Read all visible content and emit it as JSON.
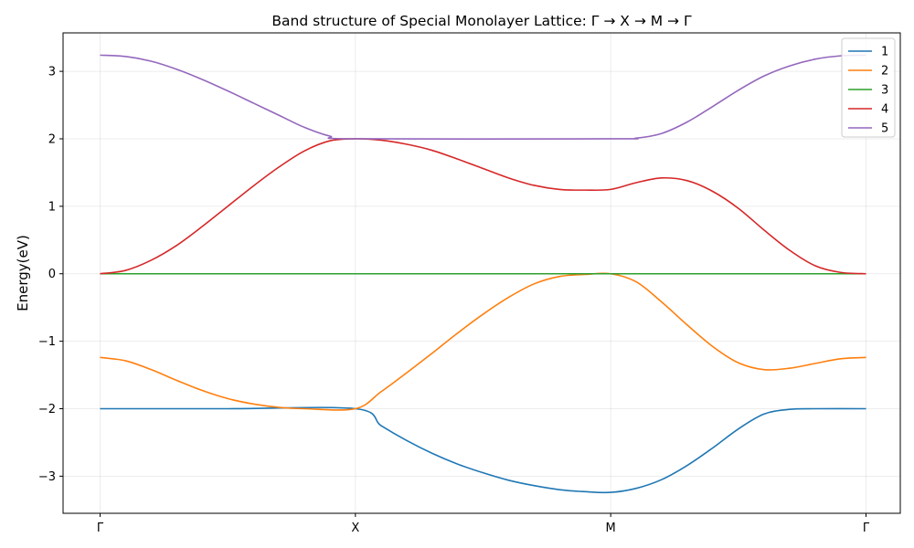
{
  "chart_data": {
    "type": "line",
    "title": "Band structure of Special Monolayer Lattice: Γ → X → M → Γ",
    "xlabel": "",
    "ylabel": "Energy(eV)",
    "x_ticks": [
      "Γ",
      "X",
      "M",
      "Γ"
    ],
    "y_ticks": [
      "−3",
      "−2",
      "−1",
      "0",
      "1",
      "2",
      "3"
    ],
    "xlim": [
      0,
      3
    ],
    "ylim": [
      -3.55,
      3.57
    ],
    "grid": true,
    "legend_position": "top-right",
    "series": [
      {
        "name": "1",
        "color": "#1f77b4",
        "points": [
          [
            0,
            -2
          ],
          [
            0.5,
            -2
          ],
          [
            1,
            -2
          ],
          [
            1.1,
            -2.25
          ],
          [
            1.2,
            -2.47
          ],
          [
            1.3,
            -2.66
          ],
          [
            1.4,
            -2.82
          ],
          [
            1.5,
            -2.95
          ],
          [
            1.6,
            -3.06
          ],
          [
            1.7,
            -3.14
          ],
          [
            1.8,
            -3.2
          ],
          [
            1.9,
            -3.23
          ],
          [
            2,
            -3.24
          ],
          [
            2.1,
            -3.18
          ],
          [
            2.2,
            -3.05
          ],
          [
            2.3,
            -2.84
          ],
          [
            2.4,
            -2.58
          ],
          [
            2.5,
            -2.3
          ],
          [
            2.6,
            -2.08
          ],
          [
            2.7,
            -2.01
          ],
          [
            2.8,
            -2.0
          ],
          [
            3,
            -2
          ]
        ]
      },
      {
        "name": "2",
        "color": "#ff7f0e",
        "points": [
          [
            0,
            -1.24
          ],
          [
            0.1,
            -1.29
          ],
          [
            0.2,
            -1.42
          ],
          [
            0.3,
            -1.58
          ],
          [
            0.4,
            -1.73
          ],
          [
            0.5,
            -1.85
          ],
          [
            0.6,
            -1.93
          ],
          [
            0.7,
            -1.98
          ],
          [
            0.8,
            -2.0
          ],
          [
            1,
            -2.0
          ],
          [
            1.1,
            -1.75
          ],
          [
            1.2,
            -1.47
          ],
          [
            1.3,
            -1.18
          ],
          [
            1.4,
            -0.88
          ],
          [
            1.5,
            -0.6
          ],
          [
            1.6,
            -0.35
          ],
          [
            1.7,
            -0.15
          ],
          [
            1.8,
            -0.04
          ],
          [
            1.9,
            -0.01
          ],
          [
            2,
            0
          ],
          [
            2.1,
            -0.12
          ],
          [
            2.2,
            -0.42
          ],
          [
            2.3,
            -0.76
          ],
          [
            2.4,
            -1.08
          ],
          [
            2.5,
            -1.32
          ],
          [
            2.6,
            -1.42
          ],
          [
            2.7,
            -1.4
          ],
          [
            2.8,
            -1.33
          ],
          [
            2.9,
            -1.26
          ],
          [
            3,
            -1.24
          ]
        ]
      },
      {
        "name": "3",
        "color": "#2ca02c",
        "points": [
          [
            0,
            0
          ],
          [
            1,
            0
          ],
          [
            2,
            0
          ],
          [
            3,
            0
          ]
        ]
      },
      {
        "name": "4",
        "color": "#d62728",
        "points": [
          [
            0,
            0
          ],
          [
            0.1,
            0.05
          ],
          [
            0.2,
            0.2
          ],
          [
            0.3,
            0.42
          ],
          [
            0.4,
            0.7
          ],
          [
            0.5,
            1.0
          ],
          [
            0.6,
            1.3
          ],
          [
            0.7,
            1.58
          ],
          [
            0.8,
            1.82
          ],
          [
            0.9,
            1.97
          ],
          [
            1,
            2.0
          ],
          [
            1.1,
            1.98
          ],
          [
            1.2,
            1.92
          ],
          [
            1.3,
            1.83
          ],
          [
            1.4,
            1.7
          ],
          [
            1.5,
            1.56
          ],
          [
            1.6,
            1.42
          ],
          [
            1.7,
            1.31
          ],
          [
            1.8,
            1.25
          ],
          [
            1.9,
            1.24
          ],
          [
            2,
            1.25
          ],
          [
            2.1,
            1.35
          ],
          [
            2.2,
            1.42
          ],
          [
            2.3,
            1.38
          ],
          [
            2.4,
            1.22
          ],
          [
            2.5,
            0.97
          ],
          [
            2.6,
            0.65
          ],
          [
            2.7,
            0.35
          ],
          [
            2.8,
            0.12
          ],
          [
            2.9,
            0.02
          ],
          [
            3,
            0
          ]
        ]
      },
      {
        "name": "5",
        "color": "#9467bd",
        "points": [
          [
            0,
            3.24
          ],
          [
            0.1,
            3.22
          ],
          [
            0.2,
            3.15
          ],
          [
            0.3,
            3.03
          ],
          [
            0.4,
            2.88
          ],
          [
            0.5,
            2.71
          ],
          [
            0.6,
            2.53
          ],
          [
            0.7,
            2.35
          ],
          [
            0.8,
            2.17
          ],
          [
            0.9,
            2.04
          ],
          [
            1,
            2.0
          ],
          [
            2,
            2.0
          ],
          [
            2.1,
            2.01
          ],
          [
            2.2,
            2.08
          ],
          [
            2.3,
            2.25
          ],
          [
            2.4,
            2.48
          ],
          [
            2.5,
            2.72
          ],
          [
            2.6,
            2.93
          ],
          [
            2.7,
            3.08
          ],
          [
            2.8,
            3.18
          ],
          [
            2.9,
            3.23
          ],
          [
            3,
            3.24
          ]
        ]
      }
    ]
  }
}
